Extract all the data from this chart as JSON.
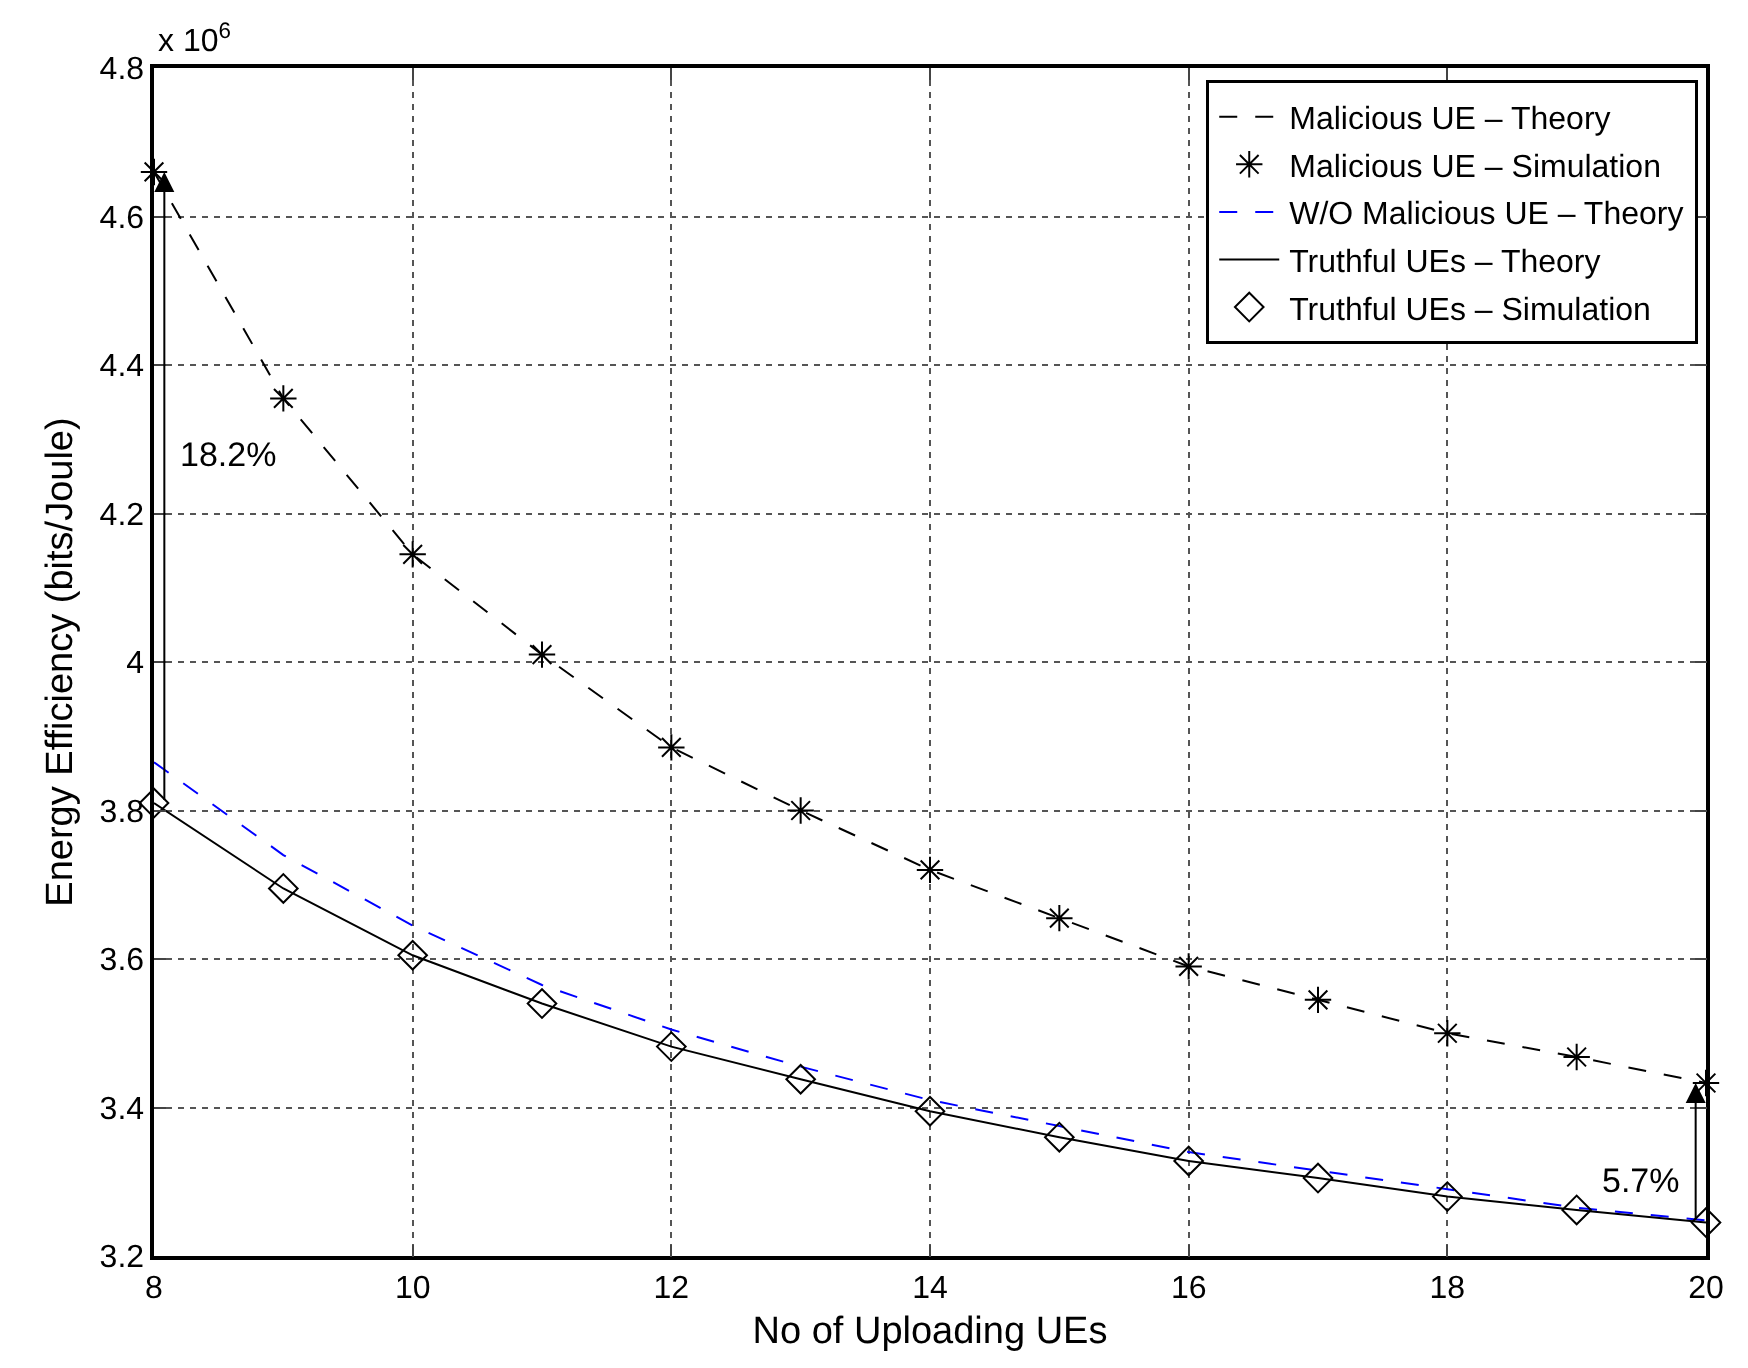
{
  "chart_data": {
    "type": "line",
    "xlabel": "No of Uploading UEs",
    "ylabel": "Energy Efficiency (bits/Joule)",
    "x": [
      8,
      9,
      10,
      11,
      12,
      13,
      14,
      15,
      16,
      17,
      18,
      19,
      20
    ],
    "series": [
      {
        "name": "Malicious UE – Theory",
        "color": "#000000",
        "line_style": "dashed",
        "marker": "none",
        "values": [
          4.66,
          4.355,
          4.145,
          4.01,
          3.885,
          3.8,
          3.72,
          3.655,
          3.59,
          3.545,
          3.5,
          3.468,
          3.433
        ]
      },
      {
        "name": "Malicious UE – Simulation",
        "type": "scatter",
        "color": "#000000",
        "marker": "cross",
        "values": [
          4.66,
          4.355,
          4.145,
          4.01,
          3.885,
          3.8,
          3.72,
          3.655,
          3.59,
          3.545,
          3.5,
          3.468,
          3.433
        ]
      },
      {
        "name": "W/O Malicious UE – Theory",
        "color": "#0000ff",
        "line_style": "dashed",
        "marker": "none",
        "values": [
          3.865,
          3.74,
          3.645,
          3.565,
          3.505,
          3.455,
          3.41,
          3.375,
          3.34,
          3.315,
          3.29,
          3.265,
          3.248
        ]
      },
      {
        "name": "Truthful UEs – Theory",
        "color": "#000000",
        "line_style": "solid",
        "marker": "none",
        "values": [
          3.81,
          3.695,
          3.605,
          3.54,
          3.482,
          3.438,
          3.395,
          3.36,
          3.328,
          3.305,
          3.28,
          3.262,
          3.245
        ]
      },
      {
        "name": "Truthful UEs – Simulation",
        "type": "scatter",
        "color": "#000000",
        "marker": "diamond",
        "values": [
          3.81,
          3.695,
          3.605,
          3.54,
          3.482,
          3.438,
          3.395,
          3.36,
          3.328,
          3.305,
          3.28,
          3.262,
          3.245
        ]
      }
    ],
    "xlim": [
      8,
      20
    ],
    "xticks": [
      8,
      10,
      12,
      14,
      16,
      18,
      20
    ],
    "ylim": [
      3.2,
      4.8
    ],
    "yticks": [
      3.2,
      3.4,
      3.6,
      3.8,
      {
        "value": 4,
        "label": "4"
      },
      4.2,
      4.4,
      4.6,
      4.8
    ],
    "annotations": [
      "x 10$^{6}$",
      "18.2%",
      {
        "text": "5.7%",
        "x": 20,
        "y": 3.433
      }
    ],
    "grid": true,
    "legend": "top right"
  }
}
